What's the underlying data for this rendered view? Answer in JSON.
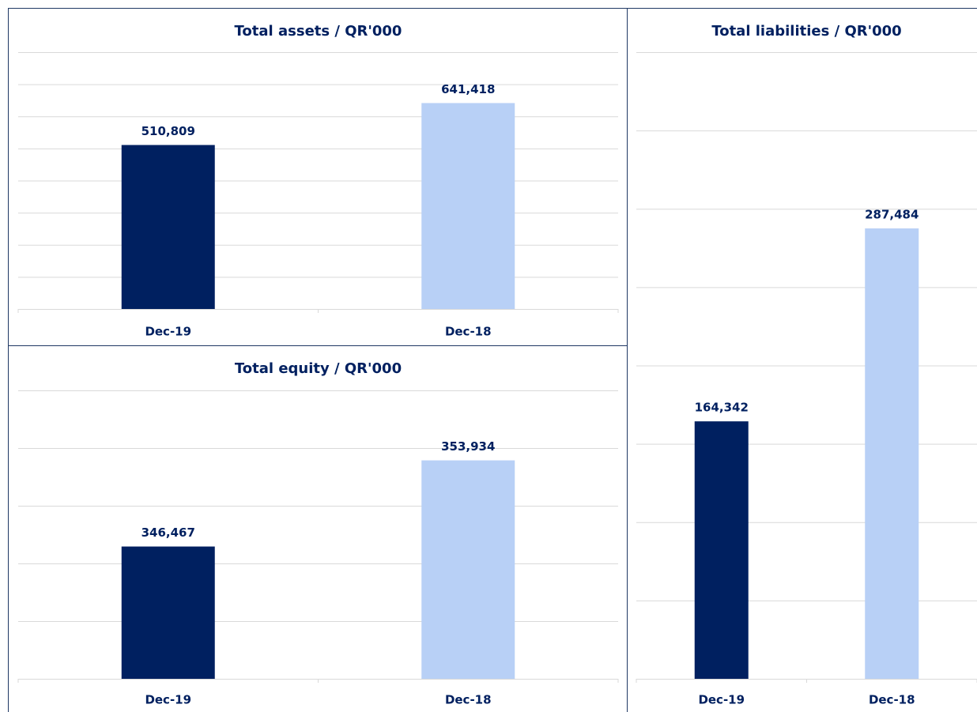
{
  "chart_data": [
    {
      "type": "bar",
      "title": "Total assets / QR'000",
      "categories": [
        "Dec-19",
        "Dec-18"
      ],
      "values": [
        510809,
        641418
      ],
      "value_labels": [
        "510,809",
        "641,418"
      ],
      "colors": [
        "#002060",
        "#b8d0f6"
      ],
      "ylim": [
        0,
        800000
      ],
      "yticks": [
        0,
        100000,
        200000,
        300000,
        400000,
        500000,
        600000,
        700000,
        800000
      ],
      "grid": true
    },
    {
      "type": "bar",
      "title": "Total equity / QR'000",
      "categories": [
        "Dec-19",
        "Dec-18"
      ],
      "values": [
        346467,
        353934
      ],
      "value_labels": [
        "346,467",
        "353,934"
      ],
      "colors": [
        "#002060",
        "#b8d0f6"
      ],
      "ylim": [
        335000,
        360000
      ],
      "yticks": [
        335000,
        340000,
        345000,
        350000,
        355000,
        360000
      ],
      "grid": true
    },
    {
      "type": "bar",
      "title": "Total liabilities / QR'000",
      "categories": [
        "Dec-19",
        "Dec-18"
      ],
      "values": [
        164342,
        287484
      ],
      "value_labels": [
        "164,342",
        "287,484"
      ],
      "colors": [
        "#002060",
        "#b8d0f6"
      ],
      "ylim": [
        0,
        400000
      ],
      "yticks": [
        0,
        50000,
        100000,
        150000,
        200000,
        250000,
        300000,
        350000,
        400000
      ],
      "grid": true
    }
  ]
}
